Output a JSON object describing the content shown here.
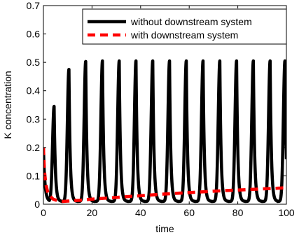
{
  "chart_data": {
    "type": "line",
    "title": "",
    "xlabel": "time",
    "ylabel": "K concentration",
    "xlim": [
      0,
      100
    ],
    "ylim": [
      0,
      0.7
    ],
    "xticks": [
      0,
      20,
      40,
      60,
      80,
      100
    ],
    "yticks": [
      0,
      0.1,
      0.2,
      0.3,
      0.4,
      0.5,
      0.6,
      0.7
    ],
    "xtick_labels": [
      "0",
      "20",
      "40",
      "60",
      "80",
      "100"
    ],
    "ytick_labels": [
      "0",
      "0.1",
      "0.2",
      "0.3",
      "0.4",
      "0.5",
      "0.6",
      "0.7"
    ],
    "grid": false,
    "legend_position": "top-right",
    "series": [
      {
        "name": "without downstream system",
        "style": "solid",
        "color": "#000000",
        "initial_value": 0.2,
        "baseline": 0.01,
        "peak_times": [
          4.4,
          10.5,
          17.4,
          24.3,
          31.2,
          38.1,
          45.0,
          51.9,
          58.8,
          65.7,
          72.6,
          79.5,
          86.4,
          93.3,
          99.4
        ],
        "peak_values": [
          0.345,
          0.475,
          0.503,
          0.505,
          0.505,
          0.505,
          0.505,
          0.505,
          0.505,
          0.505,
          0.505,
          0.505,
          0.505,
          0.505,
          0.505
        ]
      },
      {
        "name": "with downstream system",
        "style": "dashed",
        "color": "#ff0000",
        "x": [
          0,
          0.4,
          1,
          2,
          4,
          6,
          8,
          10,
          15,
          20,
          30,
          40,
          50,
          60,
          70,
          80,
          90,
          100
        ],
        "y": [
          0.2,
          0.12,
          0.07,
          0.035,
          0.018,
          0.012,
          0.01,
          0.011,
          0.014,
          0.018,
          0.024,
          0.03,
          0.036,
          0.041,
          0.046,
          0.05,
          0.054,
          0.058
        ]
      }
    ]
  }
}
